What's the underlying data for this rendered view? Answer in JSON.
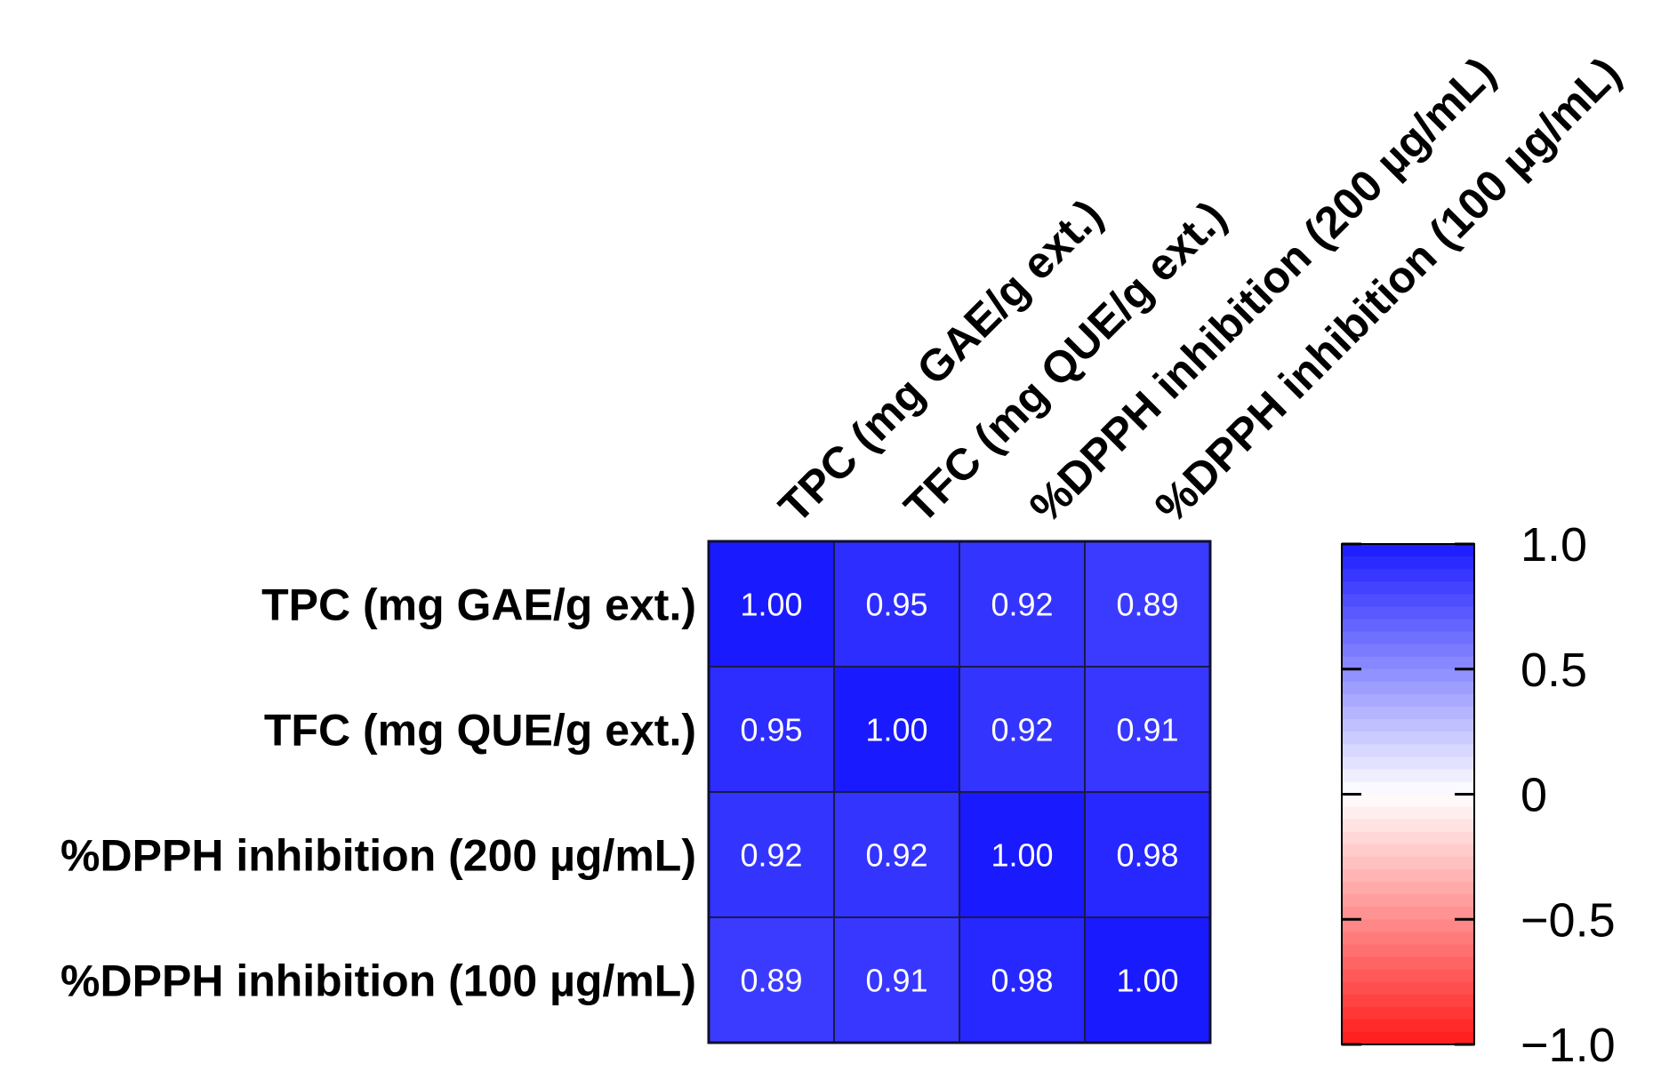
{
  "chart_data": {
    "type": "heatmap",
    "title": "",
    "row_labels": [
      "TPC (mg GAE/g ext.)",
      "TFC (mg QUE/g ext.)",
      "%DPPH inhibition (200 µg/mL)",
      "%DPPH inhibition (100 µg/mL)"
    ],
    "col_labels": [
      "TPC (mg GAE/g ext.)",
      "TFC (mg QUE/g ext.)",
      "%DPPH inhibition (200 µg/mL)",
      "%DPPH inhibition (100 µg/mL)"
    ],
    "values": [
      [
        1.0,
        0.95,
        0.92,
        0.89
      ],
      [
        0.95,
        1.0,
        0.92,
        0.91
      ],
      [
        0.92,
        0.92,
        1.0,
        0.98
      ],
      [
        0.89,
        0.91,
        0.98,
        1.0
      ]
    ],
    "value_labels": [
      [
        "1.00",
        "0.95",
        "0.92",
        "0.89"
      ],
      [
        "0.95",
        "1.00",
        "0.92",
        "0.91"
      ],
      [
        "0.92",
        "0.92",
        "1.00",
        "0.98"
      ],
      [
        "0.89",
        "0.91",
        "0.98",
        "1.00"
      ]
    ],
    "colorbar": {
      "range": [
        -1.0,
        1.0
      ],
      "ticks": [
        1.0,
        0.5,
        0,
        -0.5,
        -1.0
      ],
      "tick_labels": [
        "1.0",
        "0.5",
        "0",
        "−0.5",
        "−1.0"
      ],
      "colors": {
        "high": "#1a1aff",
        "mid": "#ffffff",
        "low": "#ff1a1a"
      }
    }
  }
}
